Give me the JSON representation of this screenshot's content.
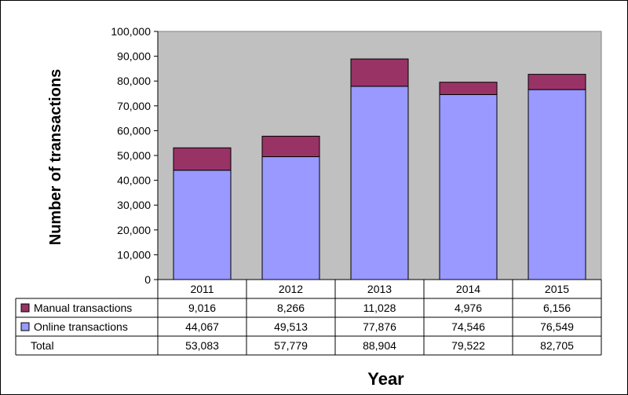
{
  "chart_data": {
    "type": "bar",
    "stacked": true,
    "title": "",
    "xlabel": "Year",
    "ylabel": "Number of transactions",
    "categories": [
      "2011",
      "2012",
      "2013",
      "2014",
      "2015"
    ],
    "ylim": [
      0,
      100000
    ],
    "yticks": [
      "0",
      "10,000",
      "20,000",
      "30,000",
      "40,000",
      "50,000",
      "60,000",
      "70,000",
      "80,000",
      "90,000",
      "100,000"
    ],
    "grid": false,
    "legend": "data-table-left",
    "series": [
      {
        "name": "Manual transactions",
        "color": "#993366",
        "values": [
          9016,
          8266,
          11028,
          4976,
          6156
        ],
        "labels": [
          "9,016",
          "8,266",
          "11,028",
          "4,976",
          "6,156"
        ]
      },
      {
        "name": "Online transactions",
        "color": "#9999ff",
        "values": [
          44067,
          49513,
          77876,
          74546,
          76549
        ],
        "labels": [
          "44,067",
          "49,513",
          "77,876",
          "74,546",
          "76,549"
        ]
      }
    ],
    "total": {
      "name": "Total",
      "values": [
        53083,
        57779,
        88904,
        79522,
        82705
      ],
      "labels": [
        "53,083",
        "57,779",
        "88,904",
        "79,522",
        "82,705"
      ]
    },
    "plot_background": "#c0c0c0",
    "page_background": "#ffffff"
  }
}
